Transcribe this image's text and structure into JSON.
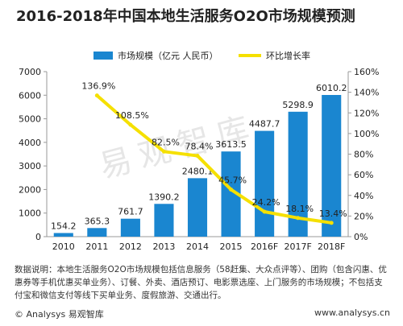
{
  "chart_data": {
    "type": "bar",
    "title": "2016-2018年中国本地生活服务O2O市场规模预测",
    "categories": [
      "2010",
      "2011",
      "2012",
      "2013",
      "2014",
      "2015",
      "2016F",
      "2017F",
      "2018F"
    ],
    "series": [
      {
        "name": "市场规模（亿元 人民币）",
        "type": "bar",
        "axis": "left",
        "values": [
          154.2,
          365.3,
          761.7,
          1390.2,
          2480.1,
          3613.5,
          4487.7,
          5298.9,
          6010.2
        ],
        "labels": [
          "154.2",
          "365.3",
          "761.7",
          "1390.2",
          "2480.1",
          "3613.5",
          "4487.7",
          "5298.9",
          "6010.2"
        ]
      },
      {
        "name": "环比增长率",
        "type": "line",
        "axis": "right",
        "values": [
          null,
          136.9,
          108.5,
          82.5,
          78.4,
          45.7,
          24.2,
          18.1,
          13.4
        ],
        "labels": [
          "",
          "136.9%",
          "108.5%",
          "82.5%",
          "78.4%",
          "45.7%",
          "24.2%",
          "18.1%",
          "13.4%"
        ]
      }
    ],
    "y_left": {
      "min": 0,
      "max": 7000,
      "ticks": [
        "0",
        "1000",
        "2000",
        "3000",
        "4000",
        "5000",
        "6000",
        "7000"
      ]
    },
    "y_right": {
      "min": 0,
      "max": 160,
      "ticks": [
        "0%",
        "20%",
        "40%",
        "60%",
        "80%",
        "100%",
        "120%",
        "140%",
        "160%"
      ]
    },
    "legend_position": "top-left",
    "grid": false,
    "colors": {
      "bar": "#1a86d0",
      "line": "#f5e000",
      "axis": "#999999",
      "text": "#222222"
    }
  },
  "note": "数据说明：本地生活服务O2O市场规模包括信息服务（58赶集、大众点评等）、团购（包含闪惠、优惠券等手机优惠买单业务）、订餐、外卖、酒店预订、电影票选座、上门服务的市场规模；不包括支付宝和微信支付等线下买单业务、度假旅游、交通出行。",
  "footer": {
    "left": "© Analysys 易观智库",
    "right": "www.analysys.cn"
  },
  "watermark": "易观智库"
}
